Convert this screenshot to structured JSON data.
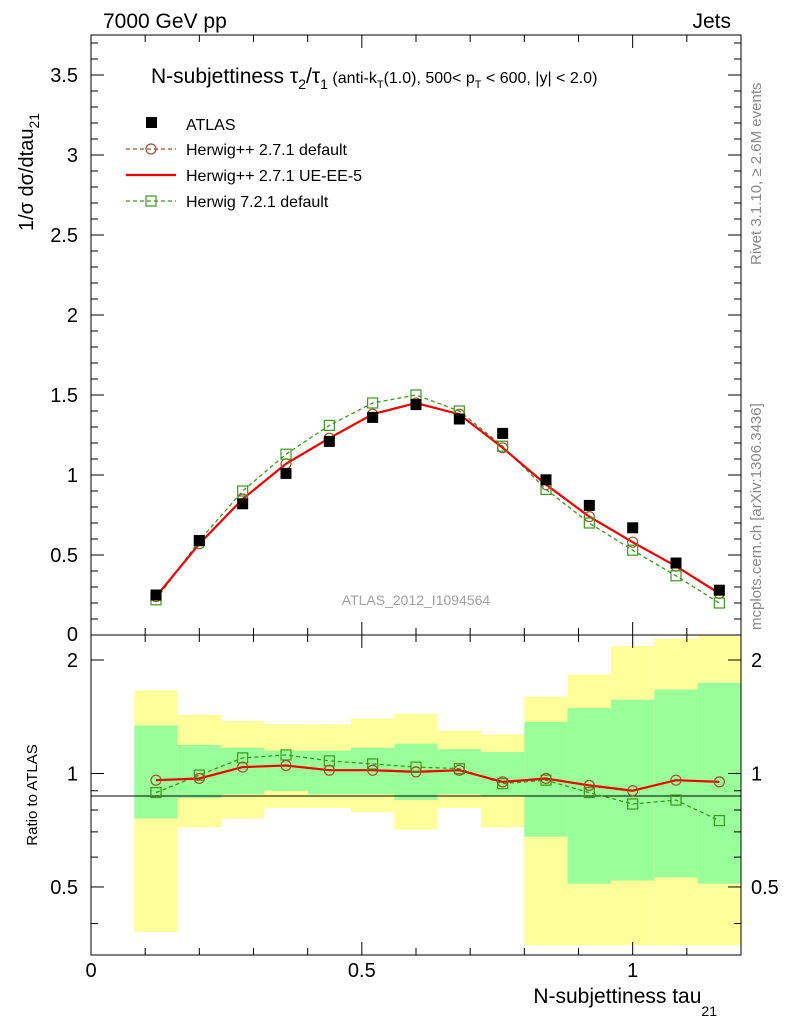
{
  "header": {
    "left": "7000 GeV pp",
    "right": "Jets"
  },
  "side_text": {
    "rivet": "Rivet 3.1.10, ≥ 2.6M events",
    "mcplots": "mcplots.cern.ch [arXiv:1306.3436]"
  },
  "colors": {
    "atlas": "#000000",
    "herwigpp_default": "#a0522d",
    "herwigpp_ueee5": "#ee0000",
    "herwig7": "#3a9a1a",
    "band_yellow": "#ffff99",
    "band_green": "#99ff99",
    "watermark": "#a0a0a0"
  },
  "chart_data": [
    {
      "type": "scatter",
      "title": "N-subjettiness τ2/τ1 (anti-kT(1.0), 500< pT < 600, |y| < 2.0)",
      "title_parts": {
        "main": "N-subjettiness τ",
        "sub1": "2",
        "slash": "/τ",
        "sub2": "1",
        "paren_a": " (anti-k",
        "paren_a_sub": "T",
        "paren_b": "(1.0), 500< p",
        "paren_b_sub": "T",
        "paren_c": " < 600, |y| < 2.0)"
      },
      "ylabel": "1/σ dσ/dtau21",
      "ylabel_parts": {
        "main": "1/σ dσ/dtau",
        "sub": "21"
      },
      "watermark": "ATLAS_2012_I1094564",
      "xlim": [
        0,
        1.2
      ],
      "ylim": [
        0,
        3.75
      ],
      "yticks": [
        0.5,
        1,
        1.5,
        2,
        2.5,
        3,
        3.5
      ],
      "ytick_labels": [
        "0.5",
        "1",
        "1.5",
        "2",
        "2.5",
        "3",
        "3.5"
      ],
      "ytick_zero_label": "0",
      "legend_position": "top-left",
      "x": [
        0.12,
        0.2,
        0.28,
        0.36,
        0.44,
        0.52,
        0.6,
        0.68,
        0.76,
        0.84,
        0.92,
        1.0,
        1.08,
        1.16
      ],
      "series": [
        {
          "name": "ATLAS",
          "style": "data",
          "values": [
            0.25,
            0.59,
            0.82,
            1.01,
            1.21,
            1.36,
            1.44,
            1.35,
            1.26,
            0.97,
            0.81,
            0.67,
            0.45,
            0.28
          ]
        },
        {
          "name": "Herwig++ 2.7.1 default",
          "style": "circle-dashed",
          "values": [
            0.24,
            0.57,
            0.85,
            1.07,
            1.23,
            1.38,
            1.45,
            1.38,
            1.17,
            0.94,
            0.74,
            0.58,
            0.43,
            0.26
          ]
        },
        {
          "name": "Herwig++ 2.7.1 UE-EE-5",
          "style": "solid",
          "values": [
            0.24,
            0.57,
            0.85,
            1.07,
            1.23,
            1.38,
            1.45,
            1.38,
            1.17,
            0.94,
            0.74,
            0.58,
            0.43,
            0.26
          ]
        },
        {
          "name": "Herwig 7.2.1 default",
          "style": "square-dashed",
          "values": [
            0.22,
            0.59,
            0.9,
            1.13,
            1.31,
            1.45,
            1.5,
            1.4,
            1.18,
            0.91,
            0.7,
            0.53,
            0.37,
            0.2
          ]
        }
      ]
    },
    {
      "type": "line",
      "ylabel": "Ratio to ATLAS",
      "xlabel": "N-subjettiness tau21",
      "xlabel_parts": {
        "main": "N-subjettiness tau",
        "sub": "21"
      },
      "xlim": [
        0,
        1.2
      ],
      "ylim": [
        0.33,
        2.33
      ],
      "yticks": [
        0.5,
        1,
        2
      ],
      "ytick_labels": [
        "0.5",
        "1",
        "2"
      ],
      "xticks": [
        0,
        0.5,
        1
      ],
      "xtick_labels": [
        "0",
        "0.5",
        "1"
      ],
      "bin_edges": [
        0.08,
        0.16,
        0.24,
        0.32,
        0.4,
        0.48,
        0.56,
        0.64,
        0.72,
        0.8,
        0.88,
        0.96,
        1.04,
        1.12,
        1.2
      ],
      "band_yellow_lo": [
        0.38,
        0.72,
        0.76,
        0.81,
        0.81,
        0.79,
        0.71,
        0.81,
        0.72,
        0.35,
        0.35,
        0.35,
        0.35,
        0.35
      ],
      "band_yellow_hi": [
        1.66,
        1.43,
        1.38,
        1.35,
        1.35,
        1.4,
        1.44,
        1.3,
        1.27,
        1.6,
        1.83,
        2.18,
        2.28,
        2.32
      ],
      "band_green_lo": [
        0.76,
        0.86,
        0.88,
        0.9,
        0.88,
        0.88,
        0.85,
        0.88,
        0.87,
        0.68,
        0.51,
        0.52,
        0.53,
        0.51
      ],
      "band_green_hi": [
        1.34,
        1.19,
        1.17,
        1.15,
        1.15,
        1.17,
        1.2,
        1.16,
        1.14,
        1.37,
        1.49,
        1.57,
        1.67,
        1.74
      ],
      "series": [
        {
          "name": "Herwig++ 2.7.1 default",
          "style": "circle-solid",
          "values": [
            0.96,
            0.97,
            1.04,
            1.05,
            1.02,
            1.02,
            1.01,
            1.02,
            0.95,
            0.97,
            0.93,
            0.9,
            0.96,
            0.95
          ]
        },
        {
          "name": "Herwig 7.2.1 default",
          "style": "square-dashed",
          "values": [
            0.89,
            0.99,
            1.1,
            1.12,
            1.08,
            1.06,
            1.04,
            1.03,
            0.94,
            0.96,
            0.89,
            0.83,
            0.85,
            0.75
          ]
        }
      ]
    }
  ]
}
